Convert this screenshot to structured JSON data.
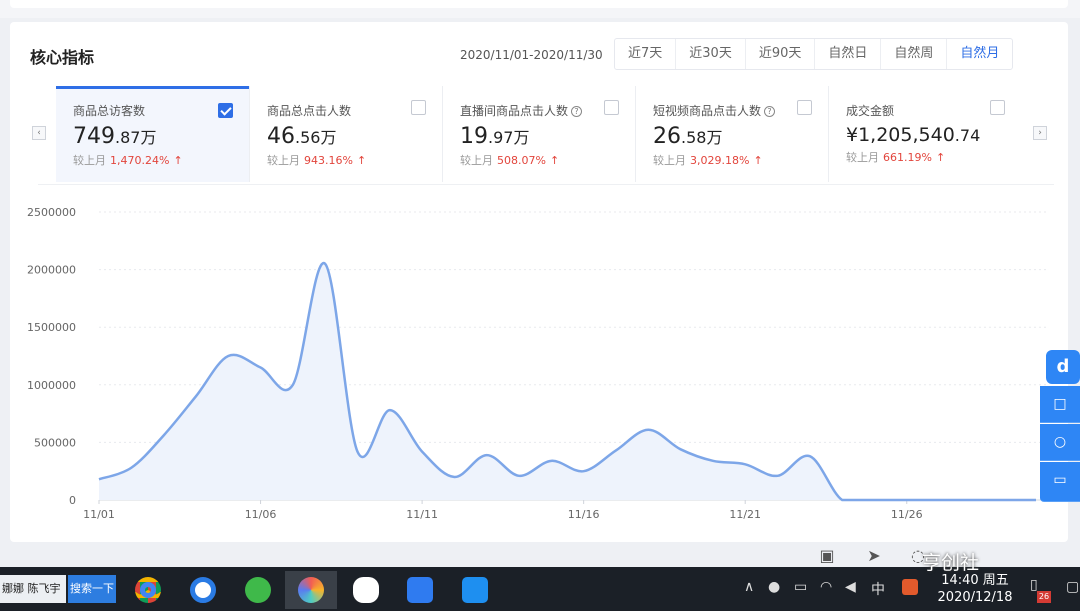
{
  "header": {
    "title": "核心指标",
    "date_range": "2020/11/01-2020/11/30",
    "tabs": [
      "近7天",
      "近30天",
      "近90天",
      "自然日",
      "自然周",
      "自然月"
    ],
    "active_tab": "自然月"
  },
  "metrics": [
    {
      "label": "商品总访客数",
      "value_main": "749",
      "value_small": ".87",
      "unit": "万",
      "compare_label": "较上月",
      "compare_pct": "1,470.24%",
      "checked": true,
      "help": false
    },
    {
      "label": "商品总点击人数",
      "value_main": "46",
      "value_small": ".56",
      "unit": "万",
      "compare_label": "较上月",
      "compare_pct": "943.16%",
      "checked": false,
      "help": false
    },
    {
      "label": "直播间商品点击人数",
      "value_main": "19",
      "value_small": ".97",
      "unit": "万",
      "compare_label": "较上月",
      "compare_pct": "508.07%",
      "checked": false,
      "help": true
    },
    {
      "label": "短视频商品点击人数",
      "value_main": "26",
      "value_small": ".58",
      "unit": "万",
      "compare_label": "较上月",
      "compare_pct": "3,029.18%",
      "checked": false,
      "help": true
    },
    {
      "label": "成交金额",
      "value_main": "¥1,205,540",
      "value_small": ".74",
      "unit": "",
      "compare_label": "较上月",
      "compare_pct": "661.19%",
      "checked": false,
      "help": false
    }
  ],
  "chart_data": {
    "type": "area",
    "x_tick_labels": [
      "11/01",
      "11/06",
      "11/11",
      "11/16",
      "11/21",
      "11/26"
    ],
    "y_tick_labels": [
      "0",
      "500000",
      "1000000",
      "1500000",
      "2000000",
      "2500000"
    ],
    "ylim": [
      0,
      2500000
    ],
    "grid": true,
    "color": "#7da6e8",
    "x": [
      "11/01",
      "11/02",
      "11/03",
      "11/04",
      "11/05",
      "11/06",
      "11/07",
      "11/08",
      "11/09",
      "11/10",
      "11/11",
      "11/12",
      "11/13",
      "11/14",
      "11/15",
      "11/16",
      "11/17",
      "11/18",
      "11/19",
      "11/20",
      "11/21",
      "11/22",
      "11/23",
      "11/24",
      "11/25",
      "11/26",
      "11/27",
      "11/28",
      "11/29",
      "11/30"
    ],
    "values": [
      180000,
      280000,
      560000,
      900000,
      1250000,
      1150000,
      1000000,
      2050000,
      420000,
      780000,
      420000,
      200000,
      390000,
      210000,
      340000,
      250000,
      430000,
      610000,
      440000,
      340000,
      310000,
      210000,
      380000,
      0,
      0,
      0,
      0,
      0,
      0,
      0
    ]
  },
  "toolbar_icons": [
    "image-icon",
    "rocket-icon",
    "speech-icon"
  ],
  "sidebar": {
    "logo": "d",
    "icons": [
      "book-icon",
      "headset-icon",
      "message-icon"
    ]
  },
  "taskbar": {
    "user": "娜娜 陈飞宇",
    "search_label": "搜索一下",
    "apps": [
      "chrome-icon",
      "qq-browser-icon",
      "360-icon",
      "picture-icon",
      "wechat-icon",
      "wps-icon",
      "kugou-icon"
    ],
    "ime": "中",
    "time": "14:40 周五",
    "date": "2020/12/18",
    "notif_count": "26"
  },
  "watermark": "亨创社",
  "colors": {
    "accent": "#2e6ee6",
    "up": "#e2453c",
    "line": "#7da6e8"
  }
}
